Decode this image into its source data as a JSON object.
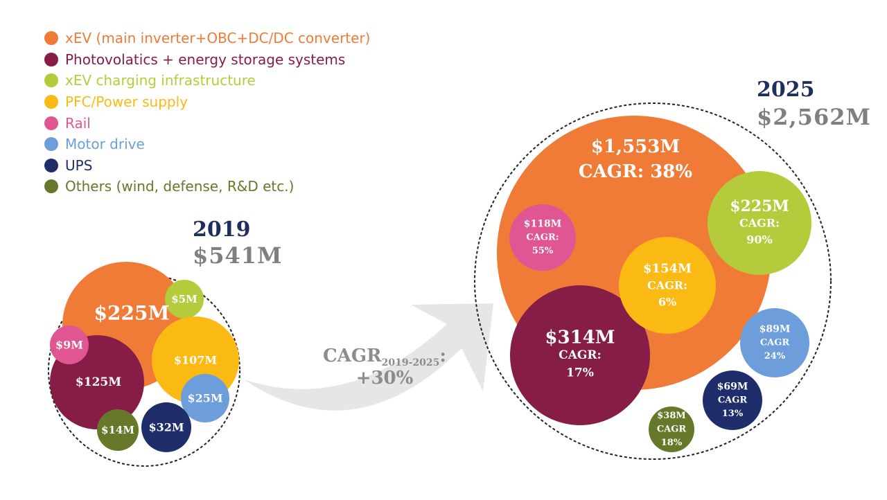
{
  "legend": {
    "items": [
      {
        "label": "xEV (main inverter+OBC+DC/DC converter)",
        "color": "#ef7b36"
      },
      {
        "label": "Photovolatics + energy storage systems",
        "color": "#861d46"
      },
      {
        "label": "xEV charging infrastructure",
        "color": "#b4cc3c"
      },
      {
        "label": "PFC/Power supply",
        "color": "#fbb914"
      },
      {
        "label": "Rail",
        "color": "#e05692"
      },
      {
        "label": "Motor drive",
        "color": "#6d9ddb"
      },
      {
        "label": "UPS",
        "color": "#1f2d6b"
      },
      {
        "label": "Others (wind, defense, R&D etc.)",
        "color": "#66782a"
      }
    ]
  },
  "year_2019": {
    "year": "2019",
    "total": "$541M"
  },
  "year_2025": {
    "year": "2025",
    "total": "$2,562M"
  },
  "growth": {
    "prefix": "CAGR",
    "subscript": "2019-2025",
    "suffix": ":",
    "value": "+30%"
  },
  "chart_data": [
    {
      "type": "bubble",
      "year": "2019",
      "total": "$541M",
      "total_value_musd": 541,
      "series": [
        {
          "name": "xEV (main inverter+OBC+DC/DC converter)",
          "value": 225,
          "label": "$225M"
        },
        {
          "name": "Photovolatics + energy storage systems",
          "value": 125,
          "label": "$125M"
        },
        {
          "name": "xEV charging infrastructure",
          "value": 5,
          "label": "$5M"
        },
        {
          "name": "PFC/Power supply",
          "value": 107,
          "label": "$107M"
        },
        {
          "name": "Rail",
          "value": 9,
          "label": "$9M"
        },
        {
          "name": "Motor drive",
          "value": 25,
          "label": "$25M"
        },
        {
          "name": "UPS",
          "value": 32,
          "label": "$32M"
        },
        {
          "name": "Others (wind, defense, R&D etc.)",
          "value": 14,
          "label": "$14M"
        }
      ]
    },
    {
      "type": "bubble",
      "year": "2025",
      "total": "$2,562M",
      "total_value_musd": 2562,
      "series": [
        {
          "name": "xEV (main inverter+OBC+DC/DC converter)",
          "value": 1553,
          "label": "$1,553M",
          "cagr": "CAGR: 38%"
        },
        {
          "name": "Photovolatics + energy storage systems",
          "value": 314,
          "label": "$314M",
          "cagr": "CAGR:",
          "cagr_value": "17%"
        },
        {
          "name": "xEV charging infrastructure",
          "value": 225,
          "label": "$225M",
          "cagr": "CAGR:",
          "cagr_value": "90%"
        },
        {
          "name": "PFC/Power supply",
          "value": 154,
          "label": "$154M",
          "cagr": "CAGR:",
          "cagr_value": "6%"
        },
        {
          "name": "Rail",
          "value": 118,
          "label": "$118M",
          "cagr": "CAGR:",
          "cagr_value": "55%"
        },
        {
          "name": "Motor drive",
          "value": 89,
          "label": "$89M",
          "cagr": "CAGR",
          "cagr_value": "24%"
        },
        {
          "name": "UPS",
          "value": 69,
          "label": "$69M",
          "cagr": "CAGR",
          "cagr_value": "13%"
        },
        {
          "name": "Others (wind, defense, R&D etc.)",
          "value": 38,
          "label": "$38M",
          "cagr": "CAGR",
          "cagr_value": "18%"
        }
      ]
    }
  ]
}
